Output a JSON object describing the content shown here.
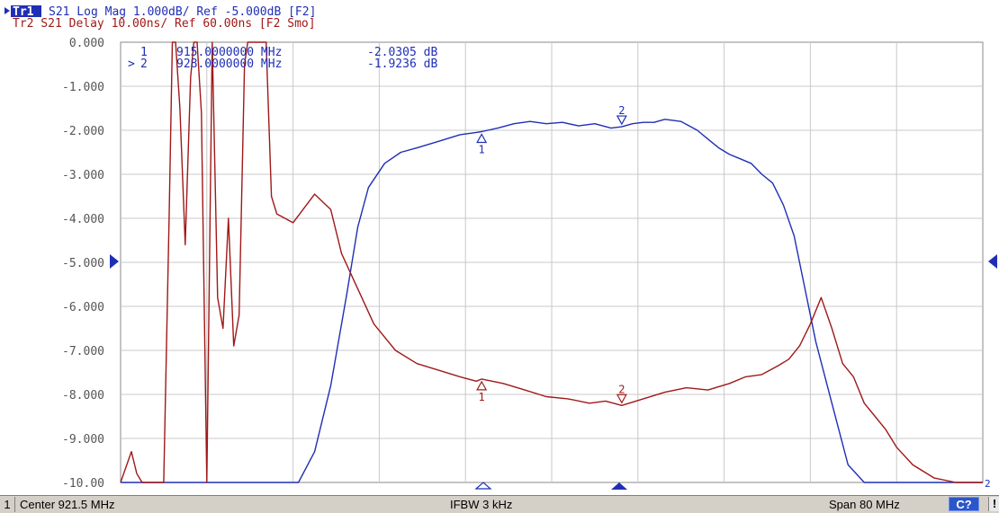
{
  "header": {
    "tr1_badge": "Tr1",
    "tr1_text": "S21  Log Mag 1.000dB/ Ref -5.000dB [F2]",
    "tr2_text": "Tr2  S21 Delay 10.00ns/ Ref 60.00ns [F2 Smo]"
  },
  "markers_table": [
    {
      "id": "1",
      "prefix": "",
      "freq": "915.0000000 MHz",
      "value": "-2.0305 dB"
    },
    {
      "id": "2",
      "prefix": ">",
      "freq": "928.0000000 MHz",
      "value": "-1.9236 dB"
    }
  ],
  "status": {
    "channel": "1",
    "center": "Center 921.5 MHz",
    "ifbw": "IFBW 3 kHz",
    "span": "Span 80 MHz",
    "button": "C?",
    "warn": "!"
  },
  "colors": {
    "trace1": "#1f2fb5",
    "trace2": "#a01818",
    "grid": "#c8c8c8",
    "text_blue": "#1f2fb5",
    "text_red": "#a01818"
  },
  "chart_data": {
    "type": "line",
    "xlabel": "",
    "ylabel": "",
    "xlim": [
      881.5,
      961.5
    ],
    "ylim": [
      -10,
      0
    ],
    "ref_level": -5,
    "ytick_labels": [
      "0.000",
      "-1.000",
      "-2.000",
      "-3.000",
      "-4.000",
      "-5.000",
      "-6.000",
      "-7.000",
      "-8.000",
      "-9.000",
      "-10.00"
    ],
    "yticks": [
      0,
      -1,
      -2,
      -3,
      -4,
      -5,
      -6,
      -7,
      -8,
      -9,
      -10
    ],
    "grid": true,
    "series": [
      {
        "name": "Tr1",
        "x": [
          881.5,
          898.0,
          899.5,
          901.0,
          902.5,
          903.5,
          904.5,
          906.0,
          907.5,
          909.0,
          911.0,
          913.0,
          914.5,
          915.0,
          916.5,
          918.0,
          919.5,
          921.0,
          922.5,
          924.0,
          925.5,
          927.0,
          928.0,
          929.0,
          930.0,
          931.0,
          932.0,
          933.5,
          935.0,
          936.0,
          937.0,
          938.0,
          939.0,
          940.0,
          941.0,
          942.0,
          943.0,
          944.0,
          945.0,
          946.0,
          947.5,
          949.0,
          950.5,
          951.5,
          961.5
        ],
        "y": [
          -10.0,
          -10.0,
          -9.3,
          -7.8,
          -5.7,
          -4.2,
          -3.3,
          -2.75,
          -2.5,
          -2.4,
          -2.25,
          -2.1,
          -2.05,
          -2.03,
          -1.95,
          -1.85,
          -1.8,
          -1.85,
          -1.82,
          -1.9,
          -1.85,
          -1.95,
          -1.92,
          -1.85,
          -1.82,
          -1.82,
          -1.75,
          -1.8,
          -2.0,
          -2.2,
          -2.4,
          -2.55,
          -2.65,
          -2.75,
          -3.0,
          -3.2,
          -3.7,
          -4.4,
          -5.6,
          -6.8,
          -8.2,
          -9.6,
          -10.0,
          -10.0,
          -10.0
        ]
      },
      {
        "name": "Tr2",
        "x": [
          881.5,
          882.5,
          883.0,
          883.5,
          884.5,
          885.5,
          886.0,
          886.3,
          886.6,
          887.0,
          887.5,
          888.0,
          888.3,
          888.6,
          889.0,
          889.5,
          890.0,
          890.5,
          891.0,
          891.5,
          892.0,
          892.5,
          893.0,
          893.3,
          894.0,
          895.0,
          895.5,
          896.0,
          897.5,
          899.5,
          901.0,
          902.0,
          903.5,
          905.0,
          907.0,
          909.0,
          911.0,
          913.0,
          914.5,
          915.0,
          917.0,
          919.0,
          921.0,
          923.0,
          925.0,
          926.5,
          928.0,
          930.0,
          932.0,
          934.0,
          936.0,
          938.0,
          939.5,
          941.0,
          942.5,
          943.5,
          944.5,
          945.5,
          946.5,
          947.5,
          948.5,
          949.5,
          950.5,
          951.5,
          952.5,
          953.5,
          955.0,
          957.0,
          959.0,
          961.5
        ],
        "y": [
          -10.0,
          -9.3,
          -9.8,
          -10.0,
          -10.0,
          -10.0,
          -4.0,
          0.0,
          0.0,
          -1.5,
          -4.6,
          -0.8,
          0.0,
          0.0,
          -1.6,
          -10.0,
          0.0,
          -5.8,
          -6.5,
          -4.0,
          -6.9,
          -6.2,
          -0.5,
          0.0,
          0.0,
          0.0,
          -3.5,
          -3.9,
          -4.1,
          -3.45,
          -3.8,
          -4.8,
          -5.6,
          -6.4,
          -7.0,
          -7.3,
          -7.45,
          -7.6,
          -7.7,
          -7.65,
          -7.75,
          -7.9,
          -8.05,
          -8.1,
          -8.2,
          -8.15,
          -8.25,
          -8.1,
          -7.95,
          -7.85,
          -7.9,
          -7.75,
          -7.6,
          -7.55,
          -7.35,
          -7.2,
          -6.9,
          -6.4,
          -5.8,
          -6.5,
          -7.3,
          -7.6,
          -8.2,
          -8.5,
          -8.8,
          -9.2,
          -9.6,
          -9.9,
          -10.0,
          -10.0
        ]
      }
    ]
  }
}
